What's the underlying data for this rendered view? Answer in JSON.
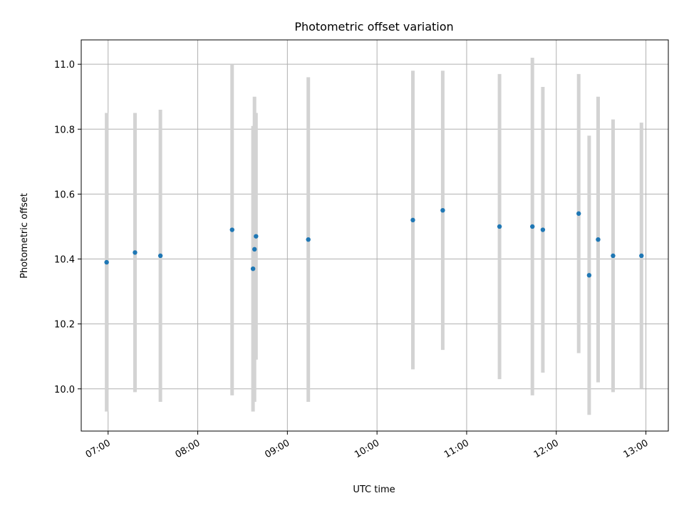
{
  "chart_data": {
    "type": "scatter",
    "title": "Photometric offset variation",
    "xlabel": "UTC time",
    "ylabel": "Photometric offset",
    "xlim": [
      "06:42",
      "13:15"
    ],
    "ylim": [
      9.87,
      11.075
    ],
    "grid": true,
    "x_ticks": [
      "07:00",
      "08:00",
      "09:00",
      "10:00",
      "11:00",
      "12:00",
      "13:00"
    ],
    "y_ticks": [
      "10.0",
      "10.2",
      "10.4",
      "10.6",
      "10.8",
      "11.0"
    ],
    "marker_color": "#1f77b4",
    "errorbar_color": "#d3d3d3",
    "points": [
      {
        "x": "06:59",
        "y": 10.39,
        "err": 0.46
      },
      {
        "x": "07:18",
        "y": 10.42,
        "err": 0.43
      },
      {
        "x": "07:35",
        "y": 10.41,
        "err": 0.45
      },
      {
        "x": "08:23",
        "y": 10.49,
        "err": 0.51
      },
      {
        "x": "08:37",
        "y": 10.37,
        "err": 0.44
      },
      {
        "x": "08:38",
        "y": 10.43,
        "err": 0.47
      },
      {
        "x": "08:39",
        "y": 10.47,
        "err": 0.38
      },
      {
        "x": "09:14",
        "y": 10.46,
        "err": 0.5
      },
      {
        "x": "10:24",
        "y": 10.52,
        "err": 0.46
      },
      {
        "x": "10:44",
        "y": 10.55,
        "err": 0.43
      },
      {
        "x": "11:22",
        "y": 10.5,
        "err": 0.47
      },
      {
        "x": "11:44",
        "y": 10.5,
        "err": 0.52
      },
      {
        "x": "11:51",
        "y": 10.49,
        "err": 0.44
      },
      {
        "x": "12:15",
        "y": 10.54,
        "err": 0.43
      },
      {
        "x": "12:22",
        "y": 10.35,
        "err": 0.43
      },
      {
        "x": "12:28",
        "y": 10.46,
        "err": 0.44
      },
      {
        "x": "12:38",
        "y": 10.41,
        "err": 0.42
      },
      {
        "x": "12:57",
        "y": 10.41,
        "err": 0.41
      }
    ]
  }
}
